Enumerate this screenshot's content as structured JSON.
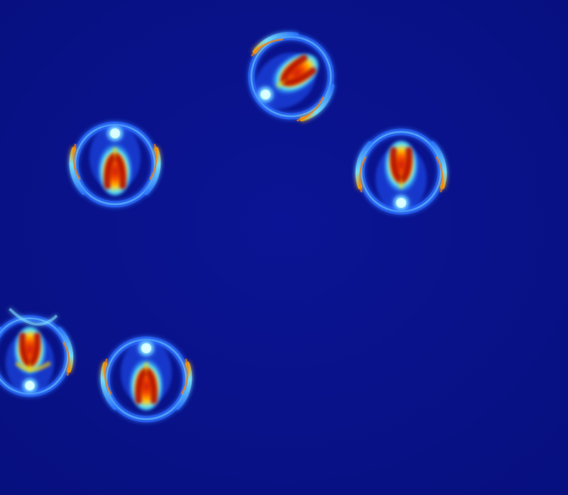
{
  "image": {
    "kind": "heatmap-style simulation frame",
    "colors": {
      "background": "#0a0f8c",
      "ring": "#2f7bff",
      "glow": "#7fe0ff",
      "hot_core": "#c8140a",
      "warm": "#ff8a00",
      "mid": "#ffe000",
      "cool": "#3ad8ff"
    },
    "objects": [
      {
        "name": "droplet-top-center",
        "rotation_deg": -125
      },
      {
        "name": "droplet-upper-left",
        "rotation_deg": 0
      },
      {
        "name": "droplet-right",
        "rotation_deg": 180
      },
      {
        "name": "droplet-bottom-center",
        "rotation_deg": 0
      },
      {
        "name": "droplet-bottom-left-partial",
        "rotation_deg": 180
      }
    ]
  }
}
